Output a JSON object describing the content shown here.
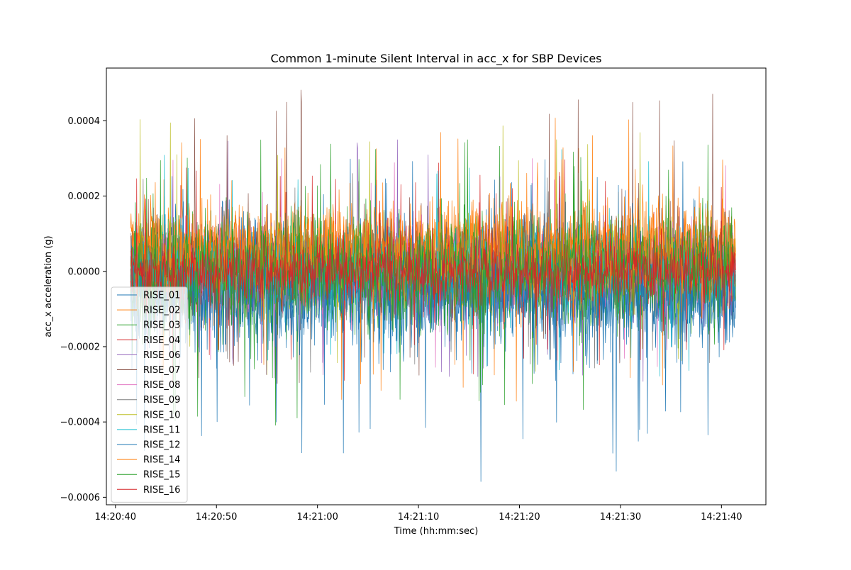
{
  "chart_data": {
    "type": "line",
    "title": "Common 1-minute Silent Interval in acc_x for SBP Devices",
    "xlabel": "Time (hh:mm:sec)",
    "ylabel": "acc_x acceleration (g)",
    "x_range": [
      "14:20:40",
      "14:21:41.4"
    ],
    "x_start": "14:20:41.5",
    "x_end": "14:21:41.4",
    "x_ticks": [
      "14:20:40",
      "14:20:50",
      "14:21:00",
      "14:21:10",
      "14:21:20",
      "14:21:30",
      "14:21:40"
    ],
    "y_ticks": [
      0.0004,
      0.0002,
      0.0,
      -0.0002,
      -0.0004,
      -0.0006
    ],
    "y_tick_labels": [
      "0.0004",
      "0.0002",
      "0.0000",
      "−0.0002",
      "−0.0004",
      "−0.0006"
    ],
    "ylim": [
      -0.00062,
      0.00054
    ],
    "grid": false,
    "legend_position": "lower-left",
    "series": [
      {
        "name": "RISE_01",
        "color": "#1f77b4",
        "mean": -4e-05,
        "amplitude": 0.00012,
        "peak_min": -0.00056,
        "peak_max": 0.0003
      },
      {
        "name": "RISE_02",
        "color": "#ff7f0e",
        "mean": 6e-05,
        "amplitude": 9e-05,
        "peak_min": -0.00035,
        "peak_max": 0.00041
      },
      {
        "name": "RISE_03",
        "color": "#2ca02c",
        "mean": 0.0,
        "amplitude": 0.00011,
        "peak_min": -0.00042,
        "peak_max": 0.00037
      },
      {
        "name": "RISE_04",
        "color": "#d62728",
        "mean": 0.0,
        "amplitude": 7e-05,
        "peak_min": -0.0003,
        "peak_max": 0.0003
      },
      {
        "name": "RISE_06",
        "color": "#9467bd",
        "mean": 1e-05,
        "amplitude": 8e-05,
        "peak_min": -0.0003,
        "peak_max": 0.00035
      },
      {
        "name": "RISE_07",
        "color": "#8c564b",
        "mean": 2e-05,
        "amplitude": 9e-05,
        "peak_min": -0.0003,
        "peak_max": 0.00049
      },
      {
        "name": "RISE_08",
        "color": "#e377c2",
        "mean": 0.0,
        "amplitude": 7e-05,
        "peak_min": -0.00028,
        "peak_max": 0.0003
      },
      {
        "name": "RISE_09",
        "color": "#7f7f7f",
        "mean": 0.0,
        "amplitude": 7e-05,
        "peak_min": -0.00028,
        "peak_max": 0.0003
      },
      {
        "name": "RISE_10",
        "color": "#bcbd22",
        "mean": 1e-05,
        "amplitude": 7e-05,
        "peak_min": -0.00028,
        "peak_max": 0.00041
      },
      {
        "name": "RISE_11",
        "color": "#17becf",
        "mean": 0.0,
        "amplitude": 7e-05,
        "peak_min": -0.00028,
        "peak_max": 0.00034
      },
      {
        "name": "RISE_12",
        "color": "#1f77b4",
        "mean": -5e-05,
        "amplitude": 0.0001,
        "peak_min": -0.0005,
        "peak_max": 0.00025
      },
      {
        "name": "RISE_14",
        "color": "#ff7f0e",
        "mean": 5e-05,
        "amplitude": 8e-05,
        "peak_min": -0.0003,
        "peak_max": 0.00042
      },
      {
        "name": "RISE_15",
        "color": "#2ca02c",
        "mean": 0.0,
        "amplitude": 0.0001,
        "peak_min": -0.0004,
        "peak_max": 0.00035
      },
      {
        "name": "RISE_16",
        "color": "#d62728",
        "mean": 0.0,
        "amplitude": 6e-05,
        "peak_min": -0.00025,
        "peak_max": 0.00025
      }
    ]
  }
}
